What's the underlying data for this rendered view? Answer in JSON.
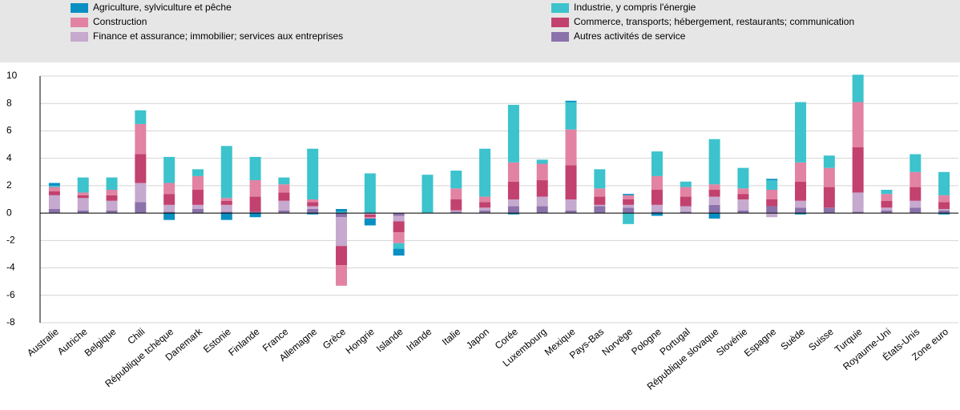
{
  "chart_data": {
    "type": "bar",
    "stacked": true,
    "categories": [
      "Australie",
      "Autriche",
      "Belgique",
      "Chili",
      "République tchèque",
      "Danemark",
      "Estonie",
      "Finlande",
      "France",
      "Allemagne",
      "Grèce",
      "Hongrie",
      "Islande",
      "Irlande",
      "Italie",
      "Japon",
      "Corée",
      "Luxembourg",
      "Mexique",
      "Pays-Bas",
      "Norvège",
      "Pologne",
      "Portugal",
      "République slovaque",
      "Slovénie",
      "Espagne",
      "Suède",
      "Suisse",
      "Turquie",
      "Royaume-Uni",
      "États-Unis",
      "Zone euro"
    ],
    "series": [
      {
        "name": "Agriculture, sylviculture et pêche",
        "color": "#0a8fc2",
        "values": [
          0.2,
          0,
          0,
          0,
          -0.5,
          0,
          -0.5,
          -0.3,
          0,
          -0.1,
          0.2,
          -0.5,
          -0.5,
          0,
          0,
          0,
          -0.1,
          0,
          0.1,
          0,
          0.1,
          -0.2,
          0,
          -0.4,
          0,
          0.1,
          -0.1,
          0,
          0,
          0,
          0,
          -0.1
        ]
      },
      {
        "name": "Industrie, y compris l'énergie",
        "color": "#3cc3cd",
        "values": [
          0.1,
          1.1,
          0.9,
          1.0,
          1.9,
          0.5,
          3.8,
          1.7,
          0.5,
          3.7,
          0.1,
          2.9,
          -0.4,
          2.8,
          1.3,
          3.5,
          4.2,
          0.3,
          2.0,
          1.4,
          -0.8,
          1.8,
          0.4,
          3.3,
          1.5,
          0.7,
          4.4,
          0.9,
          2.0,
          0.3,
          1.3,
          1.7
        ]
      },
      {
        "name": "Construction",
        "color": "#e283a3",
        "values": [
          0.3,
          0.2,
          0.4,
          2.2,
          0.8,
          1.0,
          0.2,
          1.2,
          0.6,
          0.2,
          -1.5,
          -0.1,
          -0.8,
          0,
          0.8,
          0.4,
          1.4,
          1.2,
          2.6,
          0.6,
          0.3,
          1.0,
          0.7,
          0.4,
          0.4,
          0.7,
          1.4,
          1.4,
          3.3,
          0.5,
          1.1,
          0.5
        ]
      },
      {
        "name": "Commerce, transports; hébergement, restaurants; communication",
        "color": "#c2416f",
        "values": [
          0.3,
          0.2,
          0.4,
          2.1,
          0.8,
          1.1,
          0.3,
          1.1,
          0.6,
          0.3,
          -1.4,
          -0.2,
          -0.8,
          0,
          0.8,
          0.4,
          1.3,
          1.2,
          2.5,
          0.6,
          0.4,
          1.1,
          0.7,
          0.5,
          0.4,
          0.5,
          1.4,
          1.5,
          3.3,
          0.5,
          1.0,
          0.5
        ]
      },
      {
        "name": "Finance et assurance; immobilier; services aux entreprises",
        "color": "#c6a9cf",
        "values": [
          1.0,
          0.9,
          0.7,
          1.4,
          0.5,
          0.3,
          0.5,
          0,
          0.7,
          0.2,
          -2.1,
          -0.1,
          -0.4,
          0,
          0.1,
          0.2,
          0.5,
          0.7,
          0.8,
          0.1,
          0.2,
          0.5,
          0.4,
          0.6,
          0.8,
          -0.3,
          0.5,
          0,
          1.4,
          0.2,
          0.5,
          0.1
        ]
      },
      {
        "name": "Autres activités de service",
        "color": "#8b72aa",
        "values": [
          0.3,
          0.2,
          0.2,
          0.8,
          0.1,
          0.3,
          0.1,
          0.1,
          0.2,
          0.3,
          -0.3,
          0,
          -0.2,
          0,
          0.1,
          0.2,
          0.5,
          0.5,
          0.2,
          0.5,
          0.4,
          0.1,
          0.1,
          0.6,
          0.2,
          0.5,
          0.4,
          0.4,
          0.1,
          0.2,
          0.4,
          0.2
        ]
      }
    ],
    "ylim": [
      -8,
      10
    ],
    "yticks": [
      -8,
      -6,
      -4,
      -2,
      0,
      2,
      4,
      6,
      8,
      10
    ],
    "grid": true
  }
}
